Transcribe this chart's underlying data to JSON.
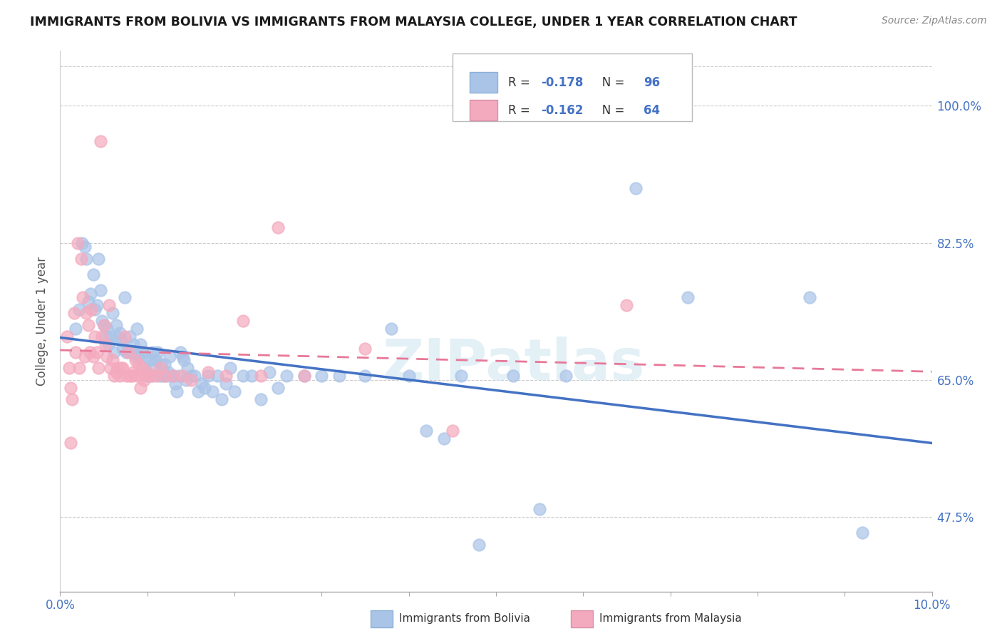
{
  "title": "IMMIGRANTS FROM BOLIVIA VS IMMIGRANTS FROM MALAYSIA COLLEGE, UNDER 1 YEAR CORRELATION CHART",
  "source": "Source: ZipAtlas.com",
  "ylabel": "College, Under 1 year",
  "ytick_vals": [
    47.5,
    65.0,
    82.5,
    100.0
  ],
  "ytick_labels": [
    "47.5%",
    "65.0%",
    "82.5%",
    "100.0%"
  ],
  "xlim": [
    0.0,
    10.0
  ],
  "ylim": [
    38.0,
    107.0
  ],
  "bolivia_color": "#aac4e8",
  "malaysia_color": "#f4aabe",
  "bolivia_line_color": "#4472c4",
  "malaysia_line_color": "#e87898",
  "bolivia_R": -0.178,
  "bolivia_N": 96,
  "malaysia_R": -0.162,
  "malaysia_N": 64,
  "watermark": "ZIPatlas",
  "bolivia_scatter": [
    [
      0.18,
      71.5
    ],
    [
      0.22,
      74.0
    ],
    [
      0.25,
      82.5
    ],
    [
      0.28,
      82.0
    ],
    [
      0.3,
      80.5
    ],
    [
      0.32,
      75.0
    ],
    [
      0.35,
      76.0
    ],
    [
      0.38,
      78.5
    ],
    [
      0.4,
      74.0
    ],
    [
      0.42,
      74.5
    ],
    [
      0.44,
      80.5
    ],
    [
      0.46,
      76.5
    ],
    [
      0.48,
      72.5
    ],
    [
      0.5,
      72.0
    ],
    [
      0.52,
      70.5
    ],
    [
      0.54,
      71.5
    ],
    [
      0.55,
      69.5
    ],
    [
      0.57,
      70.5
    ],
    [
      0.6,
      73.5
    ],
    [
      0.62,
      68.5
    ],
    [
      0.64,
      72.0
    ],
    [
      0.66,
      70.5
    ],
    [
      0.68,
      71.0
    ],
    [
      0.7,
      70.0
    ],
    [
      0.72,
      69.0
    ],
    [
      0.74,
      75.5
    ],
    [
      0.76,
      68.5
    ],
    [
      0.78,
      68.5
    ],
    [
      0.8,
      70.5
    ],
    [
      0.82,
      68.5
    ],
    [
      0.84,
      69.5
    ],
    [
      0.86,
      68.0
    ],
    [
      0.88,
      71.5
    ],
    [
      0.9,
      68.0
    ],
    [
      0.92,
      69.5
    ],
    [
      0.94,
      68.5
    ],
    [
      0.96,
      66.5
    ],
    [
      0.98,
      68.0
    ],
    [
      1.0,
      65.5
    ],
    [
      1.02,
      67.5
    ],
    [
      1.04,
      65.5
    ],
    [
      1.06,
      68.5
    ],
    [
      1.08,
      67.0
    ],
    [
      1.1,
      67.5
    ],
    [
      1.12,
      68.5
    ],
    [
      1.14,
      65.5
    ],
    [
      1.16,
      67.0
    ],
    [
      1.18,
      65.5
    ],
    [
      1.2,
      67.0
    ],
    [
      1.22,
      65.5
    ],
    [
      1.24,
      66.0
    ],
    [
      1.26,
      68.0
    ],
    [
      1.28,
      65.5
    ],
    [
      1.3,
      65.5
    ],
    [
      1.32,
      64.5
    ],
    [
      1.34,
      63.5
    ],
    [
      1.36,
      65.5
    ],
    [
      1.38,
      68.5
    ],
    [
      1.4,
      68.0
    ],
    [
      1.42,
      67.5
    ],
    [
      1.44,
      65.0
    ],
    [
      1.46,
      66.5
    ],
    [
      1.5,
      65.5
    ],
    [
      1.54,
      65.5
    ],
    [
      1.58,
      63.5
    ],
    [
      1.62,
      64.5
    ],
    [
      1.66,
      64.0
    ],
    [
      1.7,
      65.5
    ],
    [
      1.75,
      63.5
    ],
    [
      1.8,
      65.5
    ],
    [
      1.85,
      62.5
    ],
    [
      1.9,
      64.5
    ],
    [
      1.95,
      66.5
    ],
    [
      2.0,
      63.5
    ],
    [
      2.1,
      65.5
    ],
    [
      2.2,
      65.5
    ],
    [
      2.3,
      62.5
    ],
    [
      2.4,
      66.0
    ],
    [
      2.5,
      64.0
    ],
    [
      2.6,
      65.5
    ],
    [
      2.8,
      65.5
    ],
    [
      3.0,
      65.5
    ],
    [
      3.2,
      65.5
    ],
    [
      3.5,
      65.5
    ],
    [
      3.8,
      71.5
    ],
    [
      4.0,
      65.5
    ],
    [
      4.2,
      58.5
    ],
    [
      4.4,
      57.5
    ],
    [
      4.6,
      65.5
    ],
    [
      4.8,
      44.0
    ],
    [
      5.2,
      65.5
    ],
    [
      5.5,
      48.5
    ],
    [
      5.8,
      65.5
    ],
    [
      6.6,
      89.5
    ],
    [
      7.2,
      75.5
    ],
    [
      8.6,
      75.5
    ],
    [
      9.2,
      45.5
    ]
  ],
  "malaysia_scatter": [
    [
      0.08,
      70.5
    ],
    [
      0.1,
      66.5
    ],
    [
      0.12,
      64.0
    ],
    [
      0.14,
      62.5
    ],
    [
      0.16,
      73.5
    ],
    [
      0.18,
      68.5
    ],
    [
      0.2,
      82.5
    ],
    [
      0.22,
      66.5
    ],
    [
      0.24,
      80.5
    ],
    [
      0.26,
      75.5
    ],
    [
      0.28,
      68.0
    ],
    [
      0.3,
      73.5
    ],
    [
      0.32,
      72.0
    ],
    [
      0.34,
      68.5
    ],
    [
      0.36,
      74.0
    ],
    [
      0.38,
      68.0
    ],
    [
      0.4,
      70.5
    ],
    [
      0.42,
      68.5
    ],
    [
      0.44,
      66.5
    ],
    [
      0.46,
      95.5
    ],
    [
      0.48,
      70.5
    ],
    [
      0.5,
      72.0
    ],
    [
      0.52,
      69.5
    ],
    [
      0.54,
      68.0
    ],
    [
      0.56,
      74.5
    ],
    [
      0.58,
      66.5
    ],
    [
      0.6,
      67.5
    ],
    [
      0.62,
      65.5
    ],
    [
      0.64,
      66.0
    ],
    [
      0.66,
      66.5
    ],
    [
      0.68,
      65.5
    ],
    [
      0.7,
      66.5
    ],
    [
      0.72,
      66.5
    ],
    [
      0.74,
      70.5
    ],
    [
      0.76,
      65.5
    ],
    [
      0.78,
      68.5
    ],
    [
      0.8,
      65.5
    ],
    [
      0.82,
      65.5
    ],
    [
      0.84,
      66.0
    ],
    [
      0.86,
      67.5
    ],
    [
      0.88,
      65.5
    ],
    [
      0.9,
      67.0
    ],
    [
      0.92,
      64.0
    ],
    [
      0.94,
      66.5
    ],
    [
      0.96,
      65.0
    ],
    [
      0.98,
      65.5
    ],
    [
      1.0,
      66.0
    ],
    [
      1.05,
      65.5
    ],
    [
      1.1,
      65.5
    ],
    [
      1.15,
      66.5
    ],
    [
      1.2,
      65.5
    ],
    [
      1.3,
      65.5
    ],
    [
      1.4,
      65.5
    ],
    [
      1.5,
      65.0
    ],
    [
      1.7,
      66.0
    ],
    [
      1.9,
      65.5
    ],
    [
      2.1,
      72.5
    ],
    [
      2.3,
      65.5
    ],
    [
      2.5,
      84.5
    ],
    [
      2.8,
      65.5
    ],
    [
      3.5,
      69.0
    ],
    [
      4.5,
      58.5
    ],
    [
      6.5,
      74.5
    ],
    [
      0.12,
      57.0
    ]
  ]
}
